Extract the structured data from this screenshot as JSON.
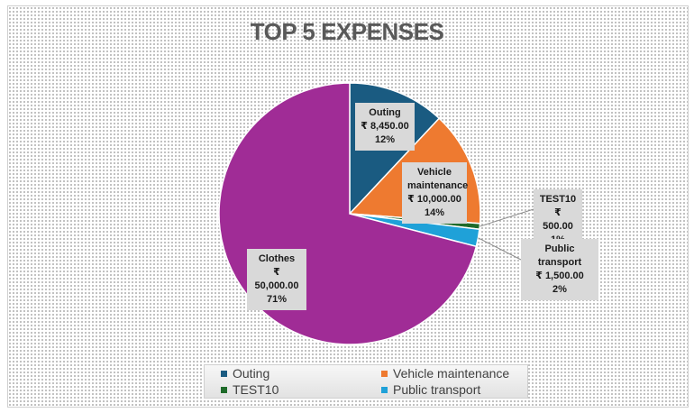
{
  "chart_data": {
    "type": "pie",
    "title": "TOP 5 EXPENSES",
    "currency_symbol": "₹",
    "slices": [
      {
        "name": "Outing",
        "value": 8450,
        "value_label": "₹ 8,450.00",
        "percent_label": "12%",
        "color": "#1a5b81"
      },
      {
        "name": "Vehicle maintenance",
        "value": 10000,
        "value_label": "₹ 10,000.00",
        "percent_label": "14%",
        "color": "#ee7a30"
      },
      {
        "name": "TEST10",
        "value": 500,
        "value_label": "₹ 500.00",
        "percent_label": "1%",
        "color": "#1f6b2a"
      },
      {
        "name": "Public transport",
        "value": 1500,
        "value_label": "₹ 1,500.00",
        "percent_label": "2%",
        "color": "#1fa1d8"
      },
      {
        "name": "Clothes",
        "value": 50000,
        "value_label": "₹ 50,000.00",
        "percent_label": "71%",
        "color": "#a02c96"
      }
    ],
    "label_display": {
      "Outing": "Outing",
      "Vehicle maintenance": "Vehicle maintenance",
      "TEST10": "TEST10",
      "Public transport": "Public transport",
      "Clothes": "Clothes"
    },
    "legend": {
      "placement": "bottom",
      "entries": [
        "Outing",
        "Vehicle maintenance",
        "TEST10",
        "Public transport"
      ]
    },
    "background": "dotted"
  }
}
